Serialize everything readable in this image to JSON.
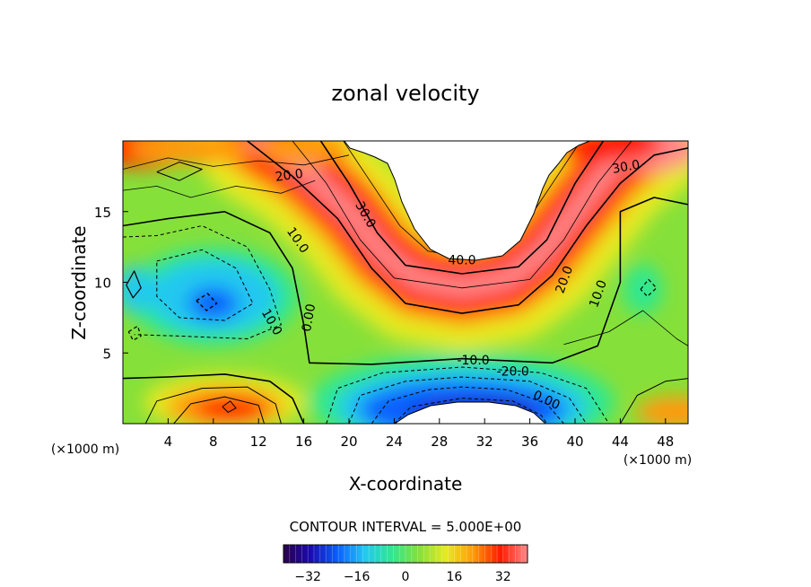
{
  "chart_data": {
    "type": "heatmap",
    "title": "zonal velocity",
    "xlabel": "X-coordinate",
    "ylabel": "Z-coordinate",
    "x_unit_left": "(×1000 m)",
    "x_unit_right": "(×1000 m)",
    "x_ticks": [
      "4",
      "8",
      "12",
      "16",
      "20",
      "24",
      "28",
      "32",
      "36",
      "40",
      "44",
      "48"
    ],
    "y_ticks": [
      "5",
      "10",
      "15"
    ],
    "xlim": [
      0,
      50
    ],
    "ylim": [
      0,
      20
    ],
    "contour_interval_text": "CONTOUR INTERVAL = 5.000E+00",
    "contour_labels": [
      "20.0",
      "30.0",
      "10.0",
      "40.0",
      "30.0",
      "20.0",
      "10.0",
      "0.00",
      "-10.0",
      "-20.0",
      "0.00",
      "10.0"
    ],
    "colorbar": {
      "range": [
        -40,
        40
      ],
      "ticks": [
        "-32",
        "-16",
        "0",
        "16",
        "32"
      ],
      "palette": [
        "#2a004a",
        "#1a0bb0",
        "#0a60ff",
        "#22c8f0",
        "#2ee890",
        "#86e03a",
        "#e6ea22",
        "#ff9a08",
        "#ff1a00",
        "#ff8a8a"
      ]
    },
    "features": [
      {
        "name": "upper jet core",
        "x": 30,
        "z": 12,
        "value": 40
      },
      {
        "name": "lower reversed jet core",
        "x": 30,
        "z": 1,
        "value": -30
      },
      {
        "name": "surface positive jet",
        "x": 9,
        "z": 1,
        "value": 25
      },
      {
        "name": "top-left positive",
        "x": 4,
        "z": 19,
        "value": 30
      },
      {
        "name": "top-right positive",
        "x": 47,
        "z": 19,
        "value": 35
      },
      {
        "name": "west-central negative pool",
        "x": 8,
        "z": 9,
        "value": -15
      }
    ]
  }
}
